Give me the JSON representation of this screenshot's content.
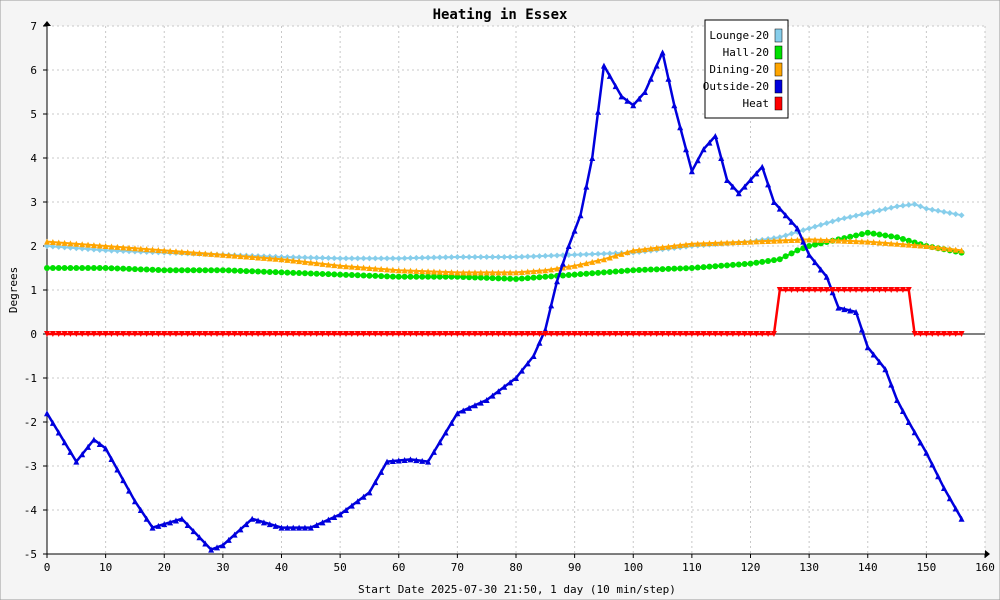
{
  "chart_data": {
    "type": "line",
    "title": "Heating in Essex",
    "xlabel": "Start Date 2025-07-30 21:50, 1 day (10 min/step)",
    "ylabel": "Degrees",
    "xlim": [
      0,
      160
    ],
    "ylim": [
      -5,
      7
    ],
    "xticks": [
      0,
      10,
      20,
      30,
      40,
      50,
      60,
      70,
      80,
      90,
      100,
      110,
      120,
      130,
      140,
      150,
      160
    ],
    "yticks": [
      -5,
      -4,
      -3,
      -2,
      -1,
      0,
      1,
      2,
      3,
      4,
      5,
      6,
      7
    ],
    "grid": true,
    "legend_position": "top-right",
    "series": [
      {
        "name": "Lounge-20",
        "color": "#87ceeb",
        "marker": "diamond",
        "x": [
          0,
          10,
          20,
          30,
          40,
          50,
          60,
          70,
          80,
          90,
          100,
          110,
          120,
          125,
          130,
          135,
          140,
          145,
          148,
          150,
          156
        ],
        "y": [
          2.0,
          1.9,
          1.85,
          1.8,
          1.75,
          1.72,
          1.72,
          1.75,
          1.75,
          1.8,
          1.85,
          2.0,
          2.1,
          2.2,
          2.4,
          2.6,
          2.75,
          2.9,
          2.95,
          2.85,
          2.7
        ]
      },
      {
        "name": "Hall-20",
        "color": "#00e000",
        "marker": "circle",
        "x": [
          0,
          10,
          20,
          30,
          40,
          50,
          60,
          70,
          80,
          90,
          100,
          110,
          120,
          125,
          128,
          130,
          135,
          140,
          145,
          150,
          156
        ],
        "y": [
          1.5,
          1.5,
          1.45,
          1.45,
          1.4,
          1.35,
          1.3,
          1.3,
          1.25,
          1.35,
          1.45,
          1.5,
          1.6,
          1.7,
          1.9,
          2.0,
          2.15,
          2.3,
          2.2,
          2.0,
          1.85
        ]
      },
      {
        "name": "Dining-20",
        "color": "#ffa500",
        "marker": "triangle",
        "x": [
          0,
          10,
          20,
          30,
          40,
          50,
          60,
          70,
          80,
          85,
          90,
          95,
          100,
          110,
          120,
          130,
          140,
          150,
          156
        ],
        "y": [
          2.1,
          2.0,
          1.9,
          1.8,
          1.7,
          1.55,
          1.45,
          1.4,
          1.4,
          1.45,
          1.55,
          1.7,
          1.9,
          2.05,
          2.1,
          2.15,
          2.1,
          2.0,
          1.9
        ]
      },
      {
        "name": "Outside-20",
        "color": "#0000dd",
        "marker": "triangle",
        "x": [
          0,
          5,
          8,
          10,
          15,
          18,
          23,
          28,
          30,
          35,
          40,
          45,
          50,
          55,
          58,
          62,
          65,
          70,
          75,
          80,
          83,
          85,
          87,
          89,
          91,
          93,
          95,
          98,
          100,
          102,
          105,
          107,
          110,
          112,
          114,
          116,
          118,
          120,
          122,
          124,
          126,
          128,
          130,
          133,
          135,
          138,
          140,
          143,
          145,
          147,
          150,
          153,
          156
        ],
        "y": [
          -1.8,
          -2.9,
          -2.4,
          -2.6,
          -3.8,
          -4.4,
          -4.2,
          -4.9,
          -4.8,
          -4.2,
          -4.4,
          -4.4,
          -4.1,
          -3.6,
          -2.9,
          -2.85,
          -2.9,
          -1.8,
          -1.5,
          -1.0,
          -0.5,
          0.1,
          1.2,
          2.0,
          2.7,
          4.0,
          6.1,
          5.4,
          5.2,
          5.5,
          6.4,
          5.2,
          3.7,
          4.2,
          4.5,
          3.5,
          3.2,
          3.5,
          3.8,
          3.0,
          2.7,
          2.4,
          1.8,
          1.3,
          0.6,
          0.5,
          -0.3,
          -0.8,
          -1.5,
          -2.0,
          -2.7,
          -3.5,
          -4.2
        ]
      },
      {
        "name": "Heat",
        "color": "#ff0000",
        "marker": "triangle-down",
        "x": [
          0,
          124,
          125,
          147,
          148,
          156
        ],
        "y": [
          0,
          0,
          1,
          1,
          0,
          0
        ]
      }
    ]
  }
}
